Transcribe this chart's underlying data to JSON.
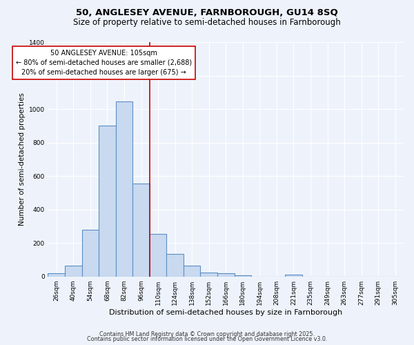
{
  "title_line1": "50, ANGLESEY AVENUE, FARNBOROUGH, GU14 8SQ",
  "title_line2": "Size of property relative to semi-detached houses in Farnborough",
  "xlabel": "Distribution of semi-detached houses by size in Farnborough",
  "ylabel": "Number of semi-detached properties",
  "categories": [
    "26sqm",
    "40sqm",
    "54sqm",
    "68sqm",
    "82sqm",
    "96sqm",
    "110sqm",
    "124sqm",
    "138sqm",
    "152sqm",
    "166sqm",
    "180sqm",
    "194sqm",
    "208sqm",
    "221sqm",
    "235sqm",
    "249sqm",
    "263sqm",
    "277sqm",
    "291sqm",
    "305sqm"
  ],
  "values": [
    20,
    65,
    280,
    900,
    1045,
    555,
    255,
    135,
    65,
    25,
    20,
    8,
    0,
    0,
    10,
    0,
    0,
    0,
    0,
    0,
    0
  ],
  "bar_color": "#c8d9f0",
  "bar_edge_color": "#5b8ec4",
  "bg_color": "#eef3fb",
  "grid_color": "#ffffff",
  "vline_x": 5.5,
  "vline_color": "#cc0000",
  "annotation_text": "50 ANGLESEY AVENUE: 105sqm\n← 80% of semi-detached houses are smaller (2,688)\n20% of semi-detached houses are larger (675) →",
  "annotation_box_color": "#ffffff",
  "annotation_box_edge": "#cc0000",
  "footer_line1": "Contains HM Land Registry data © Crown copyright and database right 2025.",
  "footer_line2": "Contains public sector information licensed under the Open Government Licence v3.0.",
  "ylim": [
    0,
    1400
  ],
  "title_fontsize": 9.5,
  "subtitle_fontsize": 8.5,
  "xlabel_fontsize": 8,
  "ylabel_fontsize": 7.5,
  "tick_fontsize": 6.5,
  "footer_fontsize": 5.8,
  "annot_fontsize": 7.0
}
